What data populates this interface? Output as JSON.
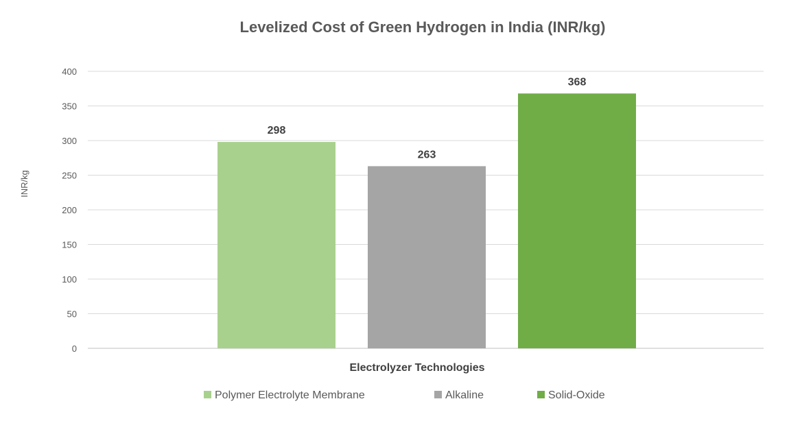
{
  "chart_data": {
    "type": "bar",
    "title": "Levelized Cost of Green Hydrogen in India (INR/kg)",
    "xlabel": "Electrolyzer Technologies",
    "ylabel": "INR/kg",
    "ylim": [
      0,
      400
    ],
    "yticks": [
      0,
      50,
      100,
      150,
      200,
      250,
      300,
      350,
      400
    ],
    "grid": true,
    "legend_position": "bottom",
    "series": [
      {
        "name": "Polymer Electrolyte Membrane",
        "values": [
          298
        ],
        "color": "#a9d18e"
      },
      {
        "name": "Alkaline",
        "values": [
          263
        ],
        "color": "#a5a5a5"
      },
      {
        "name": "Solid-Oxide",
        "values": [
          368
        ],
        "color": "#70ad47"
      }
    ]
  }
}
